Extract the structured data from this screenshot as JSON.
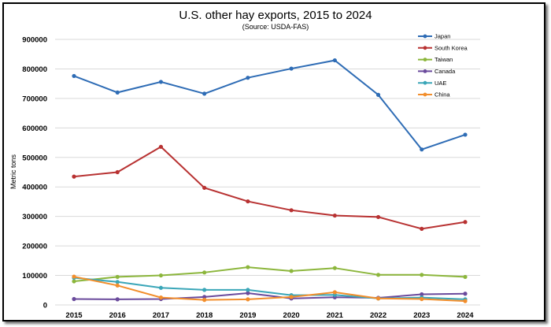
{
  "chart_data": {
    "type": "line",
    "title": "U.S. other hay exports, 2015 to 2024",
    "subtitle": "(Source: USDA-FAS)",
    "ylabel": "Metric tons",
    "xlabel": "",
    "x": [
      "2015",
      "2016",
      "2017",
      "2018",
      "2019",
      "2020",
      "2021",
      "2022",
      "2023",
      "2024"
    ],
    "ylim": [
      0,
      900000
    ],
    "yticks": [
      "0",
      "100000",
      "200000",
      "300000",
      "400000",
      "500000",
      "600000",
      "700000",
      "800000",
      "900000"
    ],
    "grid": true,
    "legend": "top-right",
    "series": [
      {
        "name": "Japan",
        "color": "#2e6cb5",
        "values": [
          776000,
          720000,
          756000,
          716000,
          770000,
          801000,
          829000,
          712000,
          527000,
          577000
        ]
      },
      {
        "name": "South Korea",
        "color": "#b83232",
        "values": [
          435000,
          450000,
          536000,
          397000,
          351000,
          321000,
          303000,
          298000,
          258000,
          281000
        ]
      },
      {
        "name": "Taiwan",
        "color": "#8cb63c",
        "values": [
          80000,
          95000,
          100000,
          110000,
          128000,
          115000,
          125000,
          102000,
          102000,
          95000
        ]
      },
      {
        "name": "Canada",
        "color": "#6a4a9c",
        "values": [
          20000,
          19000,
          20000,
          27000,
          40000,
          22000,
          26000,
          24000,
          36000,
          38000
        ]
      },
      {
        "name": "UAE",
        "color": "#3aa6b8",
        "values": [
          92000,
          78000,
          58000,
          51000,
          51000,
          33000,
          34000,
          22000,
          25000,
          19000
        ]
      },
      {
        "name": "China",
        "color": "#f28e2c",
        "values": [
          96000,
          66000,
          25000,
          17000,
          19000,
          27000,
          43000,
          22000,
          20000,
          13000
        ]
      }
    ]
  }
}
